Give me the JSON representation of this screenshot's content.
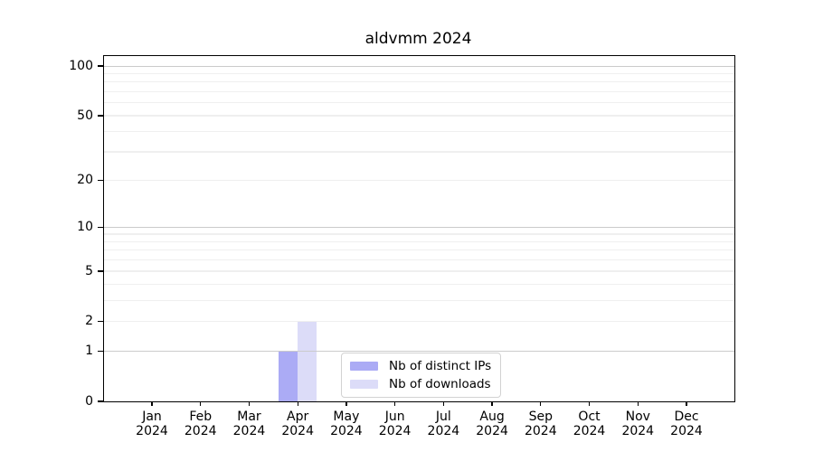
{
  "chart_data": {
    "type": "bar",
    "title": "aldvmm 2024",
    "categories": [
      {
        "month": "Jan",
        "year": "2024"
      },
      {
        "month": "Feb",
        "year": "2024"
      },
      {
        "month": "Mar",
        "year": "2024"
      },
      {
        "month": "Apr",
        "year": "2024"
      },
      {
        "month": "May",
        "year": "2024"
      },
      {
        "month": "Jun",
        "year": "2024"
      },
      {
        "month": "Jul",
        "year": "2024"
      },
      {
        "month": "Aug",
        "year": "2024"
      },
      {
        "month": "Sep",
        "year": "2024"
      },
      {
        "month": "Oct",
        "year": "2024"
      },
      {
        "month": "Nov",
        "year": "2024"
      },
      {
        "month": "Dec",
        "year": "2024"
      }
    ],
    "series": [
      {
        "name": "Nb of distinct IPs",
        "key": "distinct-ips",
        "color": "#ababf5",
        "values": [
          0,
          0,
          0,
          1,
          0,
          0,
          0,
          0,
          0,
          0,
          0,
          0
        ]
      },
      {
        "name": "Nb of downloads",
        "key": "downloads",
        "color": "#dcdcf8",
        "values": [
          0,
          0,
          0,
          2,
          0,
          0,
          0,
          0,
          0,
          0,
          0,
          0
        ]
      }
    ],
    "yscale": "log1p",
    "ylim": [
      0,
      115
    ],
    "ytick_values": [
      0,
      1,
      2,
      5,
      10,
      20,
      50,
      100
    ],
    "grid": {
      "major_values": [
        1,
        10,
        100
      ],
      "minor_values": [
        2,
        3,
        4,
        5,
        6,
        7,
        8,
        9,
        20,
        30,
        40,
        50,
        60,
        70,
        80,
        90
      ],
      "major_color": "#cbcbcb",
      "minor_color": "#efefef"
    },
    "legend_position": "lower center",
    "axis_color": "#000000",
    "xlabel": "",
    "ylabel": ""
  }
}
